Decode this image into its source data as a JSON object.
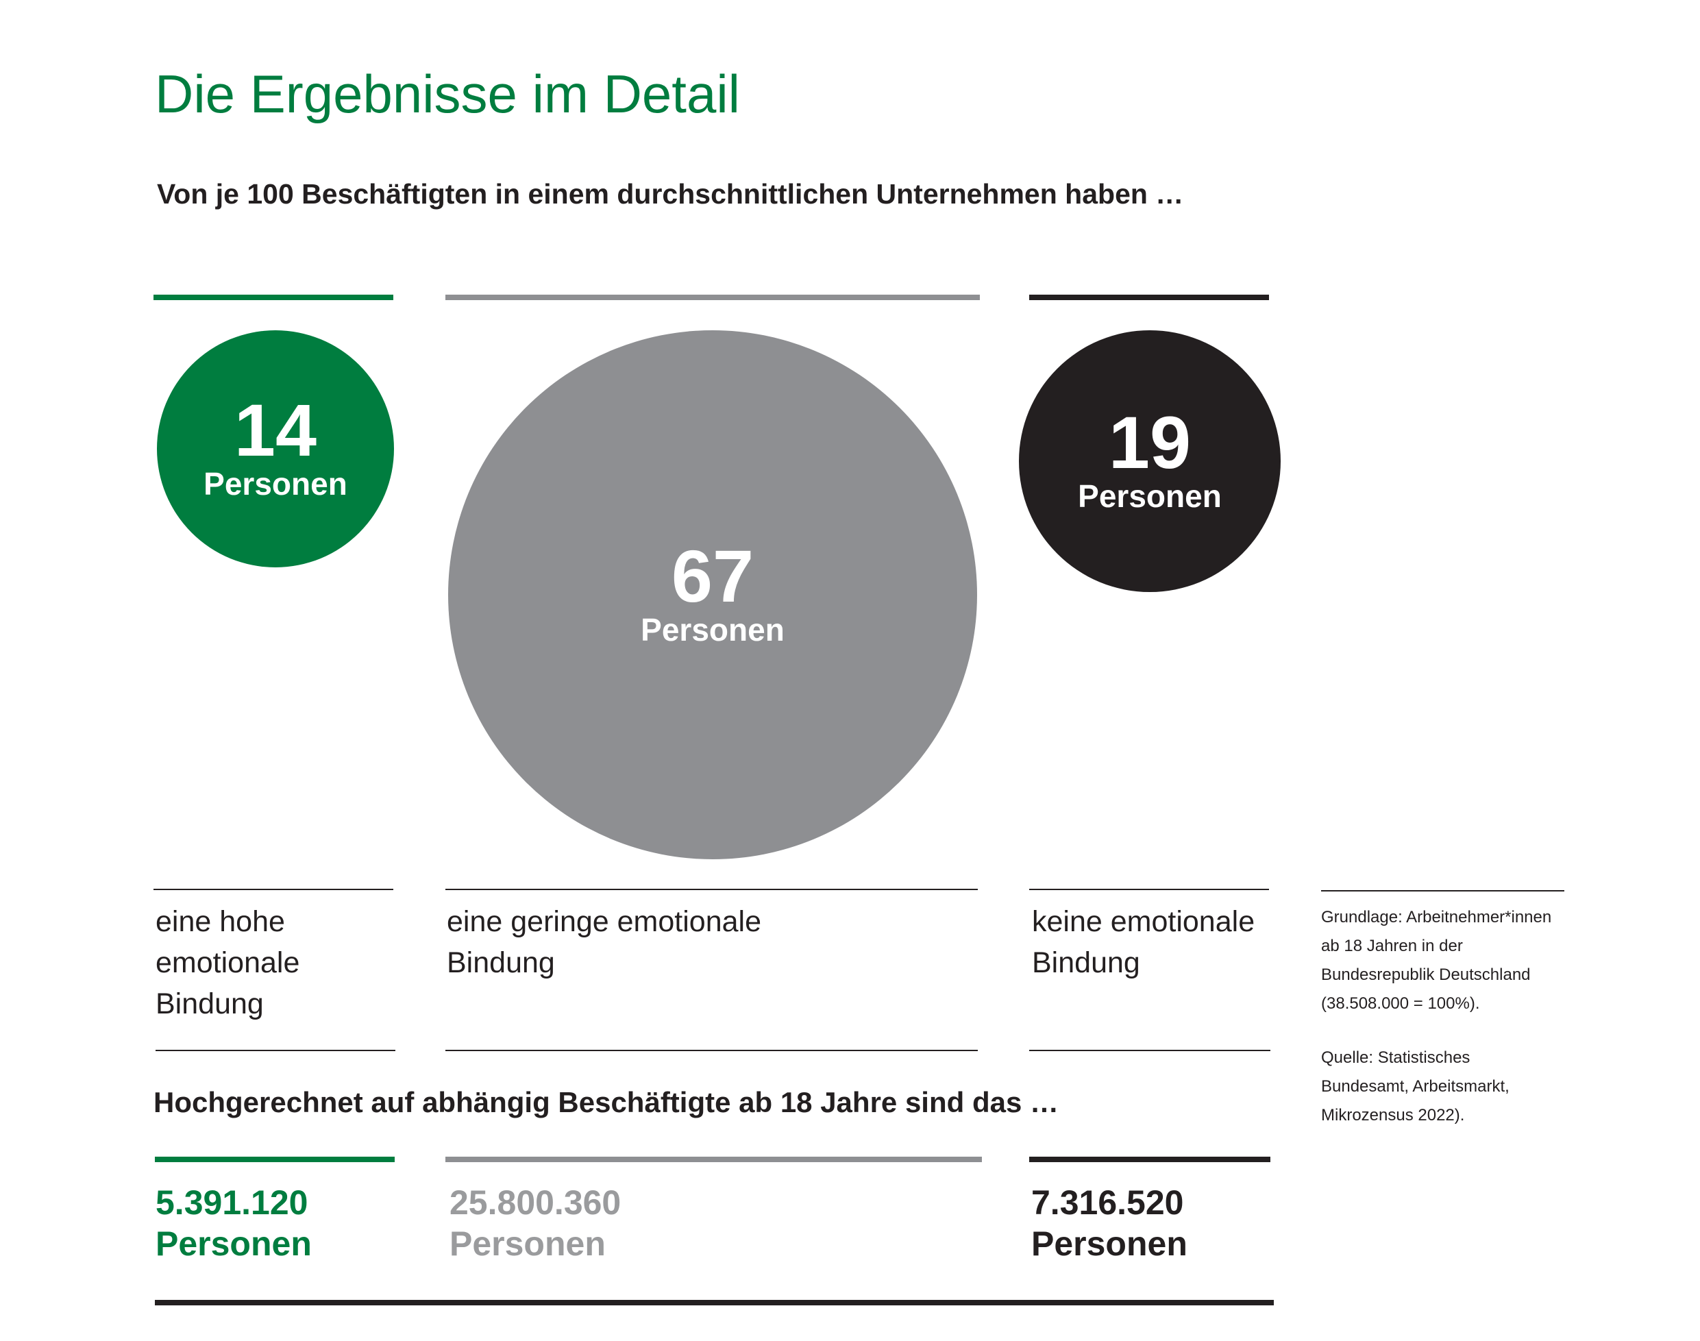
{
  "title": "Die Ergebnisse im Detail",
  "subtitle": "Von je 100 Beschäftigten in einem durchschnittlichen Unternehmen haben …",
  "section2_heading": "Hochgerechnet auf abhängig Beschäftigte ab 18 Jahre sind das …",
  "colors": {
    "high": "#007d3f",
    "low": "#8e8f92",
    "none": "#231f20",
    "low_text": "#9a9b9d"
  },
  "chart_data": {
    "type": "bubble",
    "title": "Die Ergebnisse im Detail",
    "subtitle": "Von je 100 Beschäftigten in einem durchschnittlichen Unternehmen haben …",
    "categories": [
      {
        "key": "high",
        "value": 14,
        "value_label": "14",
        "unit": "Personen",
        "label_lines": [
          "eine hohe",
          "emotionale",
          "Bindung"
        ],
        "total_value": "5.391.120",
        "total_unit": "Personen",
        "color": "#007d3f"
      },
      {
        "key": "low",
        "value": 67,
        "value_label": "67",
        "unit": "Personen",
        "label_lines": [
          "eine geringe emotionale",
          "Bindung"
        ],
        "total_value": "25.800.360",
        "total_unit": "Personen",
        "color": "#8e8f92"
      },
      {
        "key": "none",
        "value": 19,
        "value_label": "19",
        "unit": "Personen",
        "label_lines": [
          "keine emotionale",
          "Bindung"
        ],
        "total_value": "7.316.520",
        "total_unit": "Personen",
        "color": "#231f20"
      }
    ]
  },
  "note": {
    "basis_lines": [
      "Grundlage: Arbeitnehmer*innen",
      "ab 18 Jahren in der",
      "Bundesrepublik Deutschland",
      "(38.508.000 = 100%)."
    ],
    "source_lines": [
      "Quelle: Statistisches",
      "Bundesamt, Arbeitsmarkt,",
      "Mikrozensus 2022)."
    ]
  }
}
